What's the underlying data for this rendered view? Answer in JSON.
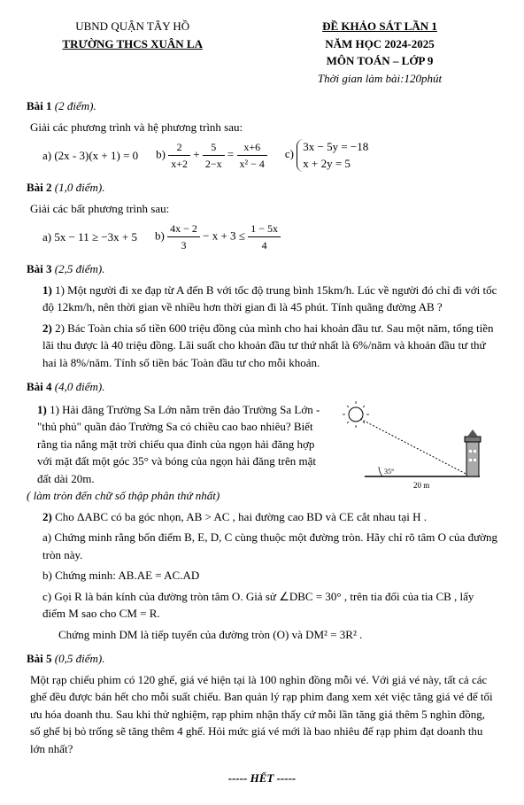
{
  "header": {
    "ubnd": "UBND QUẬN TÂY HỒ",
    "school": "TRƯỜNG THCS XUÂN LA",
    "exam_title": "ĐỀ KHẢO SÁT LẦN 1",
    "year": "NĂM HỌC 2024-2025",
    "subject": "MÔN TOÁN – LỚP 9",
    "time": "Thời gian làm bài:120phút"
  },
  "bai1": {
    "title": "Bài 1",
    "pts": "(2 điểm).",
    "intro": "Giải các phương trình và hệ phương trình sau:",
    "a_label": "a)  (2x - 3)(x + 1) = 0",
    "b_label": "b)",
    "b_frac1_num": "2",
    "b_frac1_den": "x+2",
    "b_plus": "+",
    "b_frac2_num": "5",
    "b_frac2_den": "2−x",
    "b_eq": "=",
    "b_frac3_num": "x+6",
    "b_frac3_den": "x² − 4",
    "c_label": "c)",
    "c_eq1": "3x − 5y = −18",
    "c_eq2": "x + 2y = 5"
  },
  "bai2": {
    "title": "Bài 2",
    "pts": "(1,0 điểm).",
    "intro": "Giải các bất phương trình sau:",
    "a": "a)  5x − 11 ≥ −3x + 5",
    "b_label": "b)",
    "b_frac1_num": "4x − 2",
    "b_frac1_den": "3",
    "b_mid": " − x + 3 ≤ ",
    "b_frac2_num": "1 − 5x",
    "b_frac2_den": "4"
  },
  "bai3": {
    "title": "Bài 3",
    "pts": "(2,5 điểm).",
    "q1": "1) Một người đi xe đạp từ A đến B với tốc độ trung bình 15km/h. Lúc về người đó chỉ đi với tốc độ 12km/h, nên thời gian về nhiều hơn thời gian đi là 45 phút. Tính quãng đường AB ?",
    "q2": "2) Bác Toàn chia số tiền 600 triệu đồng của mình cho hai khoản đầu tư. Sau một năm, tổng tiền lãi thu được là 40 triệu đồng. Lãi suất cho khoản đầu tư thứ nhất là 6%/năm và khoản đầu tư thứ hai là 8%/năm. Tính số tiền bác Toàn đầu tư cho mỗi khoản."
  },
  "bai4": {
    "title": "Bài 4",
    "pts": "(4,0 điểm).",
    "q1": "1) Hải đăng Trường Sa Lớn nằm trên đảo Trường Sa Lớn - \"thủ phủ\" quần đảo Trường Sa có chiều cao bao nhiêu? Biết rằng tia nắng mặt trời chiếu qua đỉnh của ngọn hải đăng hợp với mặt đất một góc 35° và bóng của ngọn hải đăng trên mặt đất dài 20m.",
    "q1_note": "( làm tròn đến chữ số thập phân thứ nhất)",
    "diagram": {
      "angle": "35°",
      "base": "20 m"
    },
    "q2_intro": "2) Cho ΔABC có ba góc nhọn, AB > AC , hai đường cao BD và CE cắt nhau tại H .",
    "q2a": "a)  Chứng minh rằng bốn điểm B, E, D, C cùng thuộc một đường tròn. Hãy chỉ rõ tâm O của đường tròn này.",
    "q2b": "b)  Chứng minh:  AB.AE  =  AC.AD",
    "q2c_1": "c)  Gọi R là bán  kính của đường tròn tâm O. Giả sử ∠DBC = 30° , trên tia đối của tia CB , lấy điểm M  sao cho  CM  =  R.",
    "q2c_2": "Chứng minh DM  là tiếp tuyến của đường tròn (O)  và DM² = 3R² ."
  },
  "bai5": {
    "title": "Bài 5",
    "pts": "(0,5 điểm).",
    "text": "Một rạp chiếu phim có 120 ghế, giá vé hiện tại là 100 nghìn đồng mỗi vé. Với giá vé này, tất cả các ghế đều được bán hết cho mỗi suất chiếu. Ban quản lý rạp phim đang xem xét việc tăng giá vé để tối ưu hóa doanh thu. Sau khi thử nghiệm, rạp phim nhận thấy cứ mỗi lần tăng giá thêm 5 nghìn đồng, số ghế bị bỏ trống sẽ tăng thêm 4 ghế. Hỏi mức giá vé mới là bao nhiêu để rạp phim đạt doanh thu lớn nhất?"
  },
  "footer": "----- HẾT -----"
}
